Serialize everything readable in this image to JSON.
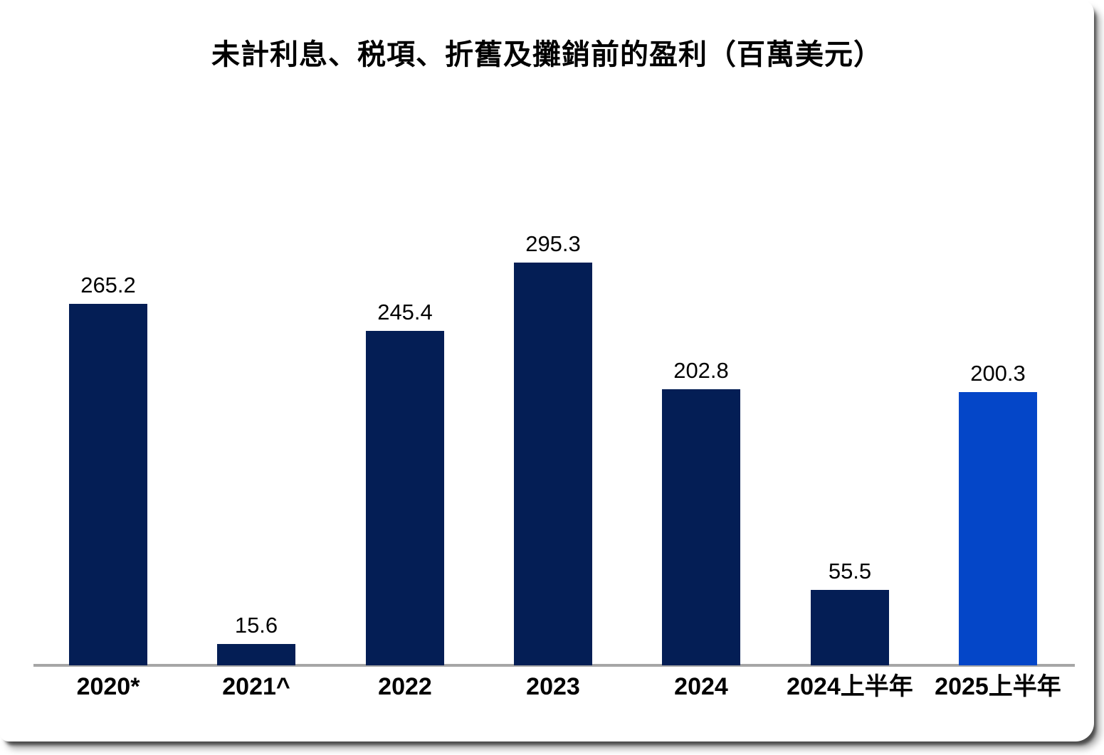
{
  "chart_data": {
    "type": "bar",
    "title": "未計利息、税項、折舊及攤銷前的盈利（百萬美元）",
    "categories": [
      "2020*",
      "2021^",
      "2022",
      "2023",
      "2024",
      "2024上半年",
      "2025上半年"
    ],
    "values": [
      265.2,
      15.6,
      245.4,
      295.3,
      202.8,
      55.5,
      200.3
    ],
    "value_labels": [
      "265.2",
      "15.6",
      "245.4",
      "295.3",
      "202.8",
      "55.5",
      "200.3"
    ],
    "bar_colors": [
      "#041e55",
      "#041e55",
      "#041e55",
      "#041e55",
      "#041e55",
      "#041e55",
      "#0446c8"
    ],
    "colors": {
      "default_bar": "#041e55",
      "highlight_bar": "#0446c8",
      "axis_line": "#a6a6a6",
      "text": "#000000",
      "background": "#ffffff"
    },
    "xlabel": "",
    "ylabel": "",
    "ylim": [
      0,
      310
    ],
    "grid": false,
    "legend": false,
    "data_labels_shown": true
  }
}
